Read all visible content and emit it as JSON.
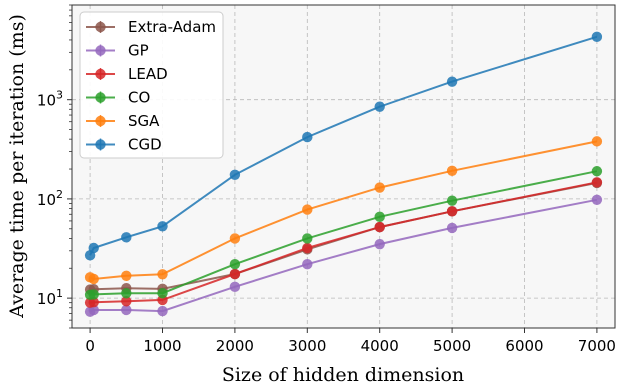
{
  "chart_data": {
    "type": "line",
    "xlabel": "Size of hidden dimension",
    "ylabel": "Average time per iteration (ms)",
    "yscale": "log",
    "xlim": [
      -250,
      7250
    ],
    "ylim": [
      5,
      9000
    ],
    "xticks": [
      0,
      1000,
      2000,
      3000,
      4000,
      5000,
      6000,
      7000
    ],
    "xtick_labels": [
      "0",
      "1000",
      "2000",
      "3000",
      "4000",
      "5000",
      "6000",
      "7000"
    ],
    "yticks": [
      10,
      100,
      1000
    ],
    "ytick_labels": [
      {
        "base": "10",
        "exp": "1"
      },
      {
        "base": "10",
        "exp": "2"
      },
      {
        "base": "10",
        "exp": "3"
      }
    ],
    "grid": true,
    "legend_position": "top-left",
    "series": [
      {
        "name": "Extra-Adam",
        "color": "#8c564b",
        "x": [
          0,
          50,
          500,
          1000,
          2000,
          3000,
          4000,
          5000,
          7000
        ],
        "y": [
          12.2,
          12.3,
          12.6,
          12.4,
          17.5,
          31,
          52,
          75,
          145
        ]
      },
      {
        "name": "GP",
        "color": "#9467bd",
        "x": [
          0,
          50,
          500,
          1000,
          2000,
          3000,
          4000,
          5000,
          7000
        ],
        "y": [
          7.3,
          7.6,
          7.6,
          7.4,
          13,
          22,
          35,
          51,
          98
        ]
      },
      {
        "name": "LEAD",
        "color": "#d62728",
        "x": [
          0,
          50,
          500,
          1000,
          2000,
          3000,
          4000,
          5000,
          7000
        ],
        "y": [
          9,
          9.1,
          9.3,
          9.6,
          17.5,
          32,
          52,
          75,
          147
        ]
      },
      {
        "name": "CO",
        "color": "#2ca02c",
        "x": [
          0,
          50,
          500,
          1000,
          2000,
          3000,
          4000,
          5000,
          7000
        ],
        "y": [
          10.8,
          10.9,
          11.2,
          11.2,
          22,
          40,
          66,
          96,
          190
        ]
      },
      {
        "name": "SGA",
        "color": "#ff7f0e",
        "x": [
          0,
          50,
          500,
          1000,
          2000,
          3000,
          4000,
          5000,
          7000
        ],
        "y": [
          16.2,
          15.6,
          16.8,
          17.4,
          40,
          78,
          130,
          192,
          380
        ]
      },
      {
        "name": "CGD",
        "color": "#1f77b4",
        "x": [
          0,
          50,
          500,
          1000,
          2000,
          3000,
          4000,
          5000,
          7000
        ],
        "y": [
          27,
          32,
          41,
          53,
          175,
          420,
          850,
          1520,
          4300
        ]
      }
    ]
  }
}
